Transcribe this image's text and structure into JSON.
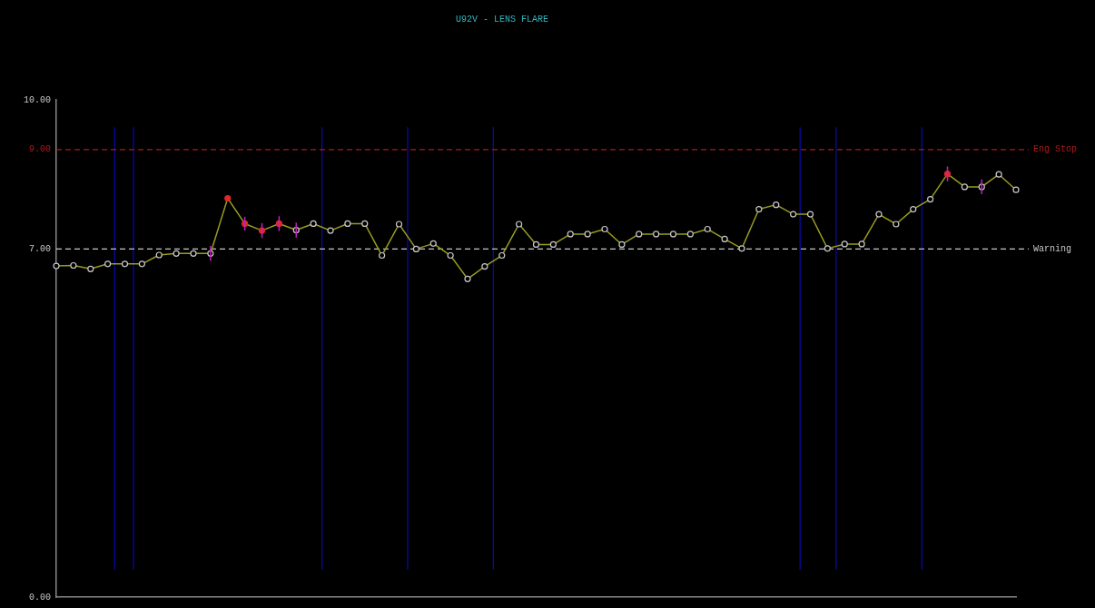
{
  "chart_data": {
    "type": "line",
    "title": "U92V - LENS FLARE",
    "categories": [
      null,
      null,
      null,
      null,
      null,
      null,
      null,
      null,
      null,
      null,
      null,
      null,
      null,
      null,
      null,
      null,
      null,
      null,
      null,
      null,
      null,
      null,
      null,
      null,
      null,
      null,
      null,
      null,
      null,
      null,
      null,
      null,
      null,
      null,
      null,
      null,
      null,
      null,
      null,
      null,
      null,
      null,
      null,
      null,
      null,
      null,
      null,
      null,
      null,
      null,
      null,
      null,
      null,
      null,
      null,
      null,
      null
    ],
    "series": [
      {
        "color": "#9a9a20",
        "values": [
          6.66,
          6.67,
          6.6,
          6.7,
          6.7,
          6.7,
          6.88,
          6.91,
          6.91,
          6.91,
          8.02,
          7.51,
          7.37,
          7.51,
          7.38,
          7.51,
          7.37,
          7.51,
          7.51,
          6.87,
          7.5,
          7.0,
          7.11,
          6.87,
          6.4,
          6.65,
          6.87,
          7.5,
          7.09,
          7.09,
          7.3,
          7.3,
          7.4,
          7.09,
          7.3,
          7.3,
          7.3,
          7.3,
          7.4,
          7.2,
          7.01,
          7.8,
          7.89,
          7.7,
          7.7,
          7.01,
          7.1,
          7.1,
          7.7,
          7.5,
          7.8,
          8.0,
          8.51,
          8.25,
          8.25,
          8.5,
          8.19
        ],
        "colors": [
          "#c8c8c8",
          "#c8c8c8",
          "#c8c8c8",
          "#c8c8c8",
          "#c8c8c8",
          "#c8c8c8",
          "#c8c8c8",
          "#c8c8c8",
          "#c8c8c8",
          "#c8c8c8",
          "#e02828",
          "#e02828",
          "#e02828",
          "#e02828",
          "#c8c8c8",
          "#c8c8c8",
          "#c8c8c8",
          "#c8c8c8",
          "#c8c8c8",
          "#c8c8c8",
          "#c8c8c8",
          "#c8c8c8",
          "#c8c8c8",
          "#c8c8c8",
          "#c8c8c8",
          "#c8c8c8",
          "#c8c8c8",
          "#c8c8c8",
          "#c8c8c8",
          "#c8c8c8",
          "#c8c8c8",
          "#c8c8c8",
          "#c8c8c8",
          "#c8c8c8",
          "#c8c8c8",
          "#c8c8c8",
          "#c8c8c8",
          "#c8c8c8",
          "#c8c8c8",
          "#c8c8c8",
          "#c8c8c8",
          "#c8c8c8",
          "#c8c8c8",
          "#c8c8c8",
          "#c8c8c8",
          "#c8c8c8",
          "#c8c8c8",
          "#c8c8c8",
          "#c8c8c8",
          "#c8c8c8",
          "#c8c8c8",
          "#c8c8c8",
          "#e02828",
          "#c8c8c8",
          "#c8c8c8",
          "#c8c8c8",
          "#c8c8c8"
        ],
        "errors": [
          null,
          null,
          null,
          null,
          null,
          null,
          null,
          null,
          null,
          0.15,
          null,
          0.14,
          0.15,
          0.15,
          0.15,
          null,
          null,
          null,
          null,
          null,
          null,
          null,
          null,
          null,
          null,
          null,
          null,
          null,
          null,
          null,
          null,
          null,
          null,
          null,
          null,
          null,
          null,
          null,
          null,
          null,
          null,
          null,
          null,
          null,
          null,
          null,
          null,
          null,
          null,
          null,
          null,
          null,
          0.15,
          null,
          0.15,
          null,
          null
        ]
      }
    ],
    "ylim": [
      0,
      10
    ],
    "yticks": [
      {
        "value": 0,
        "label": "0.00"
      },
      {
        "value": 7,
        "label": "7.00"
      },
      {
        "value": 9,
        "label": "9.00"
      },
      {
        "value": 10,
        "label": "10.00"
      }
    ],
    "tick_labels": "y",
    "marker": "circle",
    "grid": false,
    "legend": false,
    "ref_lines": [
      {
        "axis": "y",
        "value": 9,
        "label": "Eng Stop",
        "color": "#b01818",
        "line_style": "dashed"
      },
      {
        "axis": "y",
        "value": 7,
        "label": "Warning",
        "color": "#c8c8c8",
        "line_style": "dashed"
      }
    ]
  }
}
